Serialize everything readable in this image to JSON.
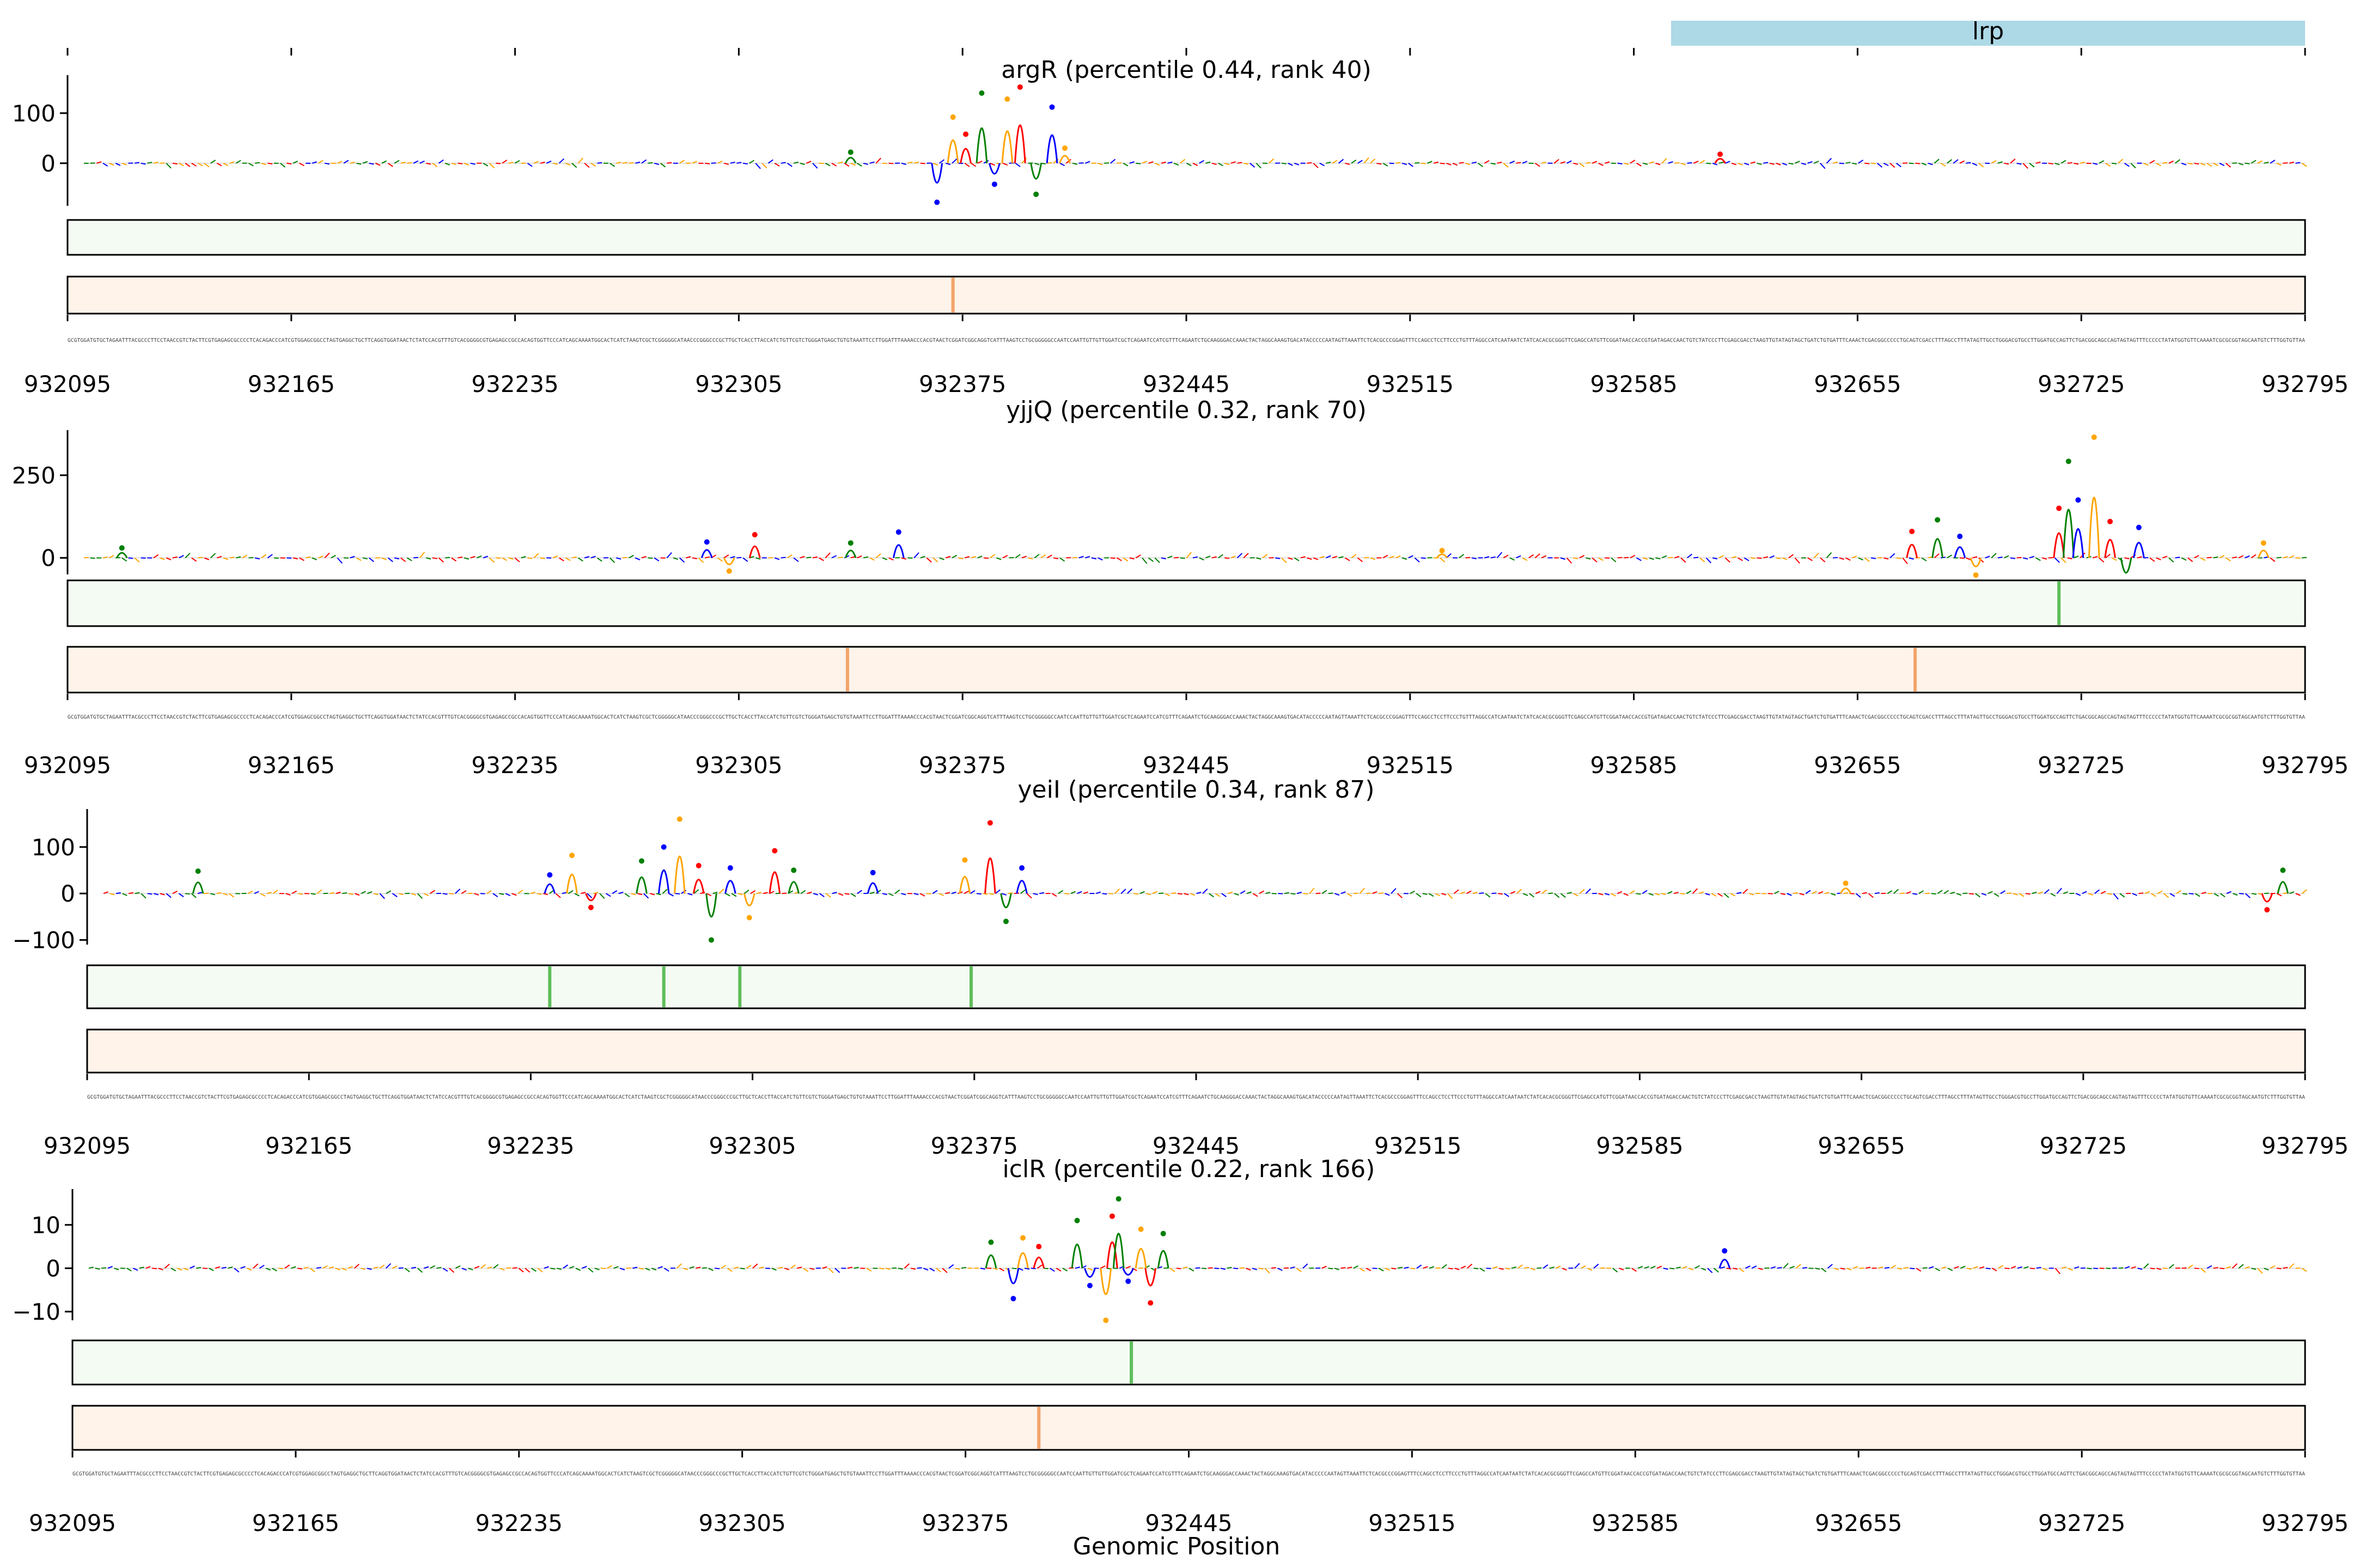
{
  "figure": {
    "xlabel": "Genomic Position",
    "annotation": {
      "label": "lrp",
      "start": 932605,
      "end": 932795,
      "color": "#add8e6"
    }
  },
  "chart_data": [
    {
      "type": "line",
      "title": "argR (percentile 0.44, rank 40)",
      "xlim": [
        932095,
        932795
      ],
      "xticks": [
        "932095",
        "932165",
        "932235",
        "932305",
        "932375",
        "932445",
        "932515",
        "932585",
        "932655",
        "932725",
        "932795"
      ],
      "ylim": [
        -85,
        165
      ],
      "yticks": [
        "0",
        "100"
      ],
      "ytick_values": [
        0,
        100
      ],
      "peaks": [
        {
          "x": 932340,
          "y": 22
        },
        {
          "x": 932367,
          "y": -78
        },
        {
          "x": 932372,
          "y": 92
        },
        {
          "x": 932376,
          "y": 58
        },
        {
          "x": 932381,
          "y": 140
        },
        {
          "x": 932385,
          "y": -42
        },
        {
          "x": 932389,
          "y": 128
        },
        {
          "x": 932393,
          "y": 152
        },
        {
          "x": 932398,
          "y": -62
        },
        {
          "x": 932403,
          "y": 112
        },
        {
          "x": 932407,
          "y": 30
        },
        {
          "x": 932612,
          "y": 18
        }
      ],
      "track_a_peaks": [],
      "track_b_peaks": [
        932372
      ]
    },
    {
      "type": "line",
      "title": "yjjQ (percentile 0.32, rank 70)",
      "xlim": [
        932095,
        932795
      ],
      "xticks": [
        "932095",
        "932165",
        "932235",
        "932305",
        "932375",
        "932445",
        "932515",
        "932585",
        "932655",
        "932725",
        "932795"
      ],
      "ylim": [
        -50,
        370
      ],
      "yticks": [
        "0",
        "250"
      ],
      "ytick_values": [
        0,
        250
      ],
      "peaks": [
        {
          "x": 932112,
          "y": 30
        },
        {
          "x": 932295,
          "y": 48
        },
        {
          "x": 932302,
          "y": -40
        },
        {
          "x": 932310,
          "y": 70
        },
        {
          "x": 932340,
          "y": 45
        },
        {
          "x": 932355,
          "y": 78
        },
        {
          "x": 932525,
          "y": 22
        },
        {
          "x": 932672,
          "y": 80
        },
        {
          "x": 932680,
          "y": 115
        },
        {
          "x": 932687,
          "y": 65
        },
        {
          "x": 932692,
          "y": -52
        },
        {
          "x": 932718,
          "y": 150
        },
        {
          "x": 932721,
          "y": 292
        },
        {
          "x": 932724,
          "y": 175
        },
        {
          "x": 932729,
          "y": 365
        },
        {
          "x": 932734,
          "y": 110
        },
        {
          "x": 932739,
          "y": -90
        },
        {
          "x": 932743,
          "y": 92
        },
        {
          "x": 932782,
          "y": 45
        }
      ],
      "track_a_peaks": [
        932718
      ],
      "track_b_peaks": [
        932339,
        932673
      ]
    },
    {
      "type": "line",
      "title": "yeiI (percentile 0.34, rank 87)",
      "xlim": [
        932095,
        932795
      ],
      "xticks": [
        "932095",
        "932165",
        "932235",
        "932305",
        "932375",
        "932445",
        "932515",
        "932585",
        "932655",
        "932725",
        "932795"
      ],
      "ylim": [
        -110,
        170
      ],
      "yticks": [
        "100",
        "0",
        "−100"
      ],
      "ytick_values": [
        100,
        0,
        -100
      ],
      "peaks": [
        {
          "x": 932130,
          "y": 48
        },
        {
          "x": 932241,
          "y": 40
        },
        {
          "x": 932248,
          "y": 82
        },
        {
          "x": 932254,
          "y": -30
        },
        {
          "x": 932270,
          "y": 70
        },
        {
          "x": 932277,
          "y": 100
        },
        {
          "x": 932282,
          "y": 160
        },
        {
          "x": 932288,
          "y": 60
        },
        {
          "x": 932292,
          "y": -100
        },
        {
          "x": 932298,
          "y": 55
        },
        {
          "x": 932304,
          "y": -52
        },
        {
          "x": 932312,
          "y": 92
        },
        {
          "x": 932318,
          "y": 50
        },
        {
          "x": 932343,
          "y": 45
        },
        {
          "x": 932372,
          "y": 72
        },
        {
          "x": 932380,
          "y": 152
        },
        {
          "x": 932385,
          "y": -60
        },
        {
          "x": 932390,
          "y": 55
        },
        {
          "x": 932650,
          "y": 22
        },
        {
          "x": 932783,
          "y": -35
        },
        {
          "x": 932788,
          "y": 50
        }
      ],
      "track_a_peaks": [
        932241,
        932277,
        932301,
        932374
      ],
      "track_b_peaks": []
    },
    {
      "type": "line",
      "title": "iclR (percentile 0.22, rank 166)",
      "xlim": [
        932095,
        932795
      ],
      "xticks": [
        "932095",
        "932165",
        "932235",
        "932305",
        "932375",
        "932445",
        "932515",
        "932585",
        "932655",
        "932725",
        "932795"
      ],
      "ylim": [
        -12,
        17
      ],
      "yticks": [
        "10",
        "0",
        "−10"
      ],
      "ytick_values": [
        10,
        0,
        -10
      ],
      "peaks": [
        {
          "x": 932383,
          "y": 6
        },
        {
          "x": 932390,
          "y": -7
        },
        {
          "x": 932393,
          "y": 7
        },
        {
          "x": 932398,
          "y": 5
        },
        {
          "x": 932410,
          "y": 11
        },
        {
          "x": 932414,
          "y": -4
        },
        {
          "x": 932419,
          "y": -12
        },
        {
          "x": 932421,
          "y": 12
        },
        {
          "x": 932423,
          "y": 16
        },
        {
          "x": 932426,
          "y": -3
        },
        {
          "x": 932430,
          "y": 9
        },
        {
          "x": 932433,
          "y": -8
        },
        {
          "x": 932437,
          "y": 8
        },
        {
          "x": 932613,
          "y": 4
        }
      ],
      "track_a_peaks": [
        932427
      ],
      "track_b_peaks": [
        932398
      ]
    }
  ],
  "colors": {
    "A": "#008000",
    "C": "#0000ff",
    "G": "#ffa500",
    "T": "#ff0000",
    "track_a_bg": "#f4fbf3",
    "track_a_peak": "#5fbe5a",
    "track_b_bg": "#fff3ea",
    "track_b_peak": "#f2a46a"
  }
}
